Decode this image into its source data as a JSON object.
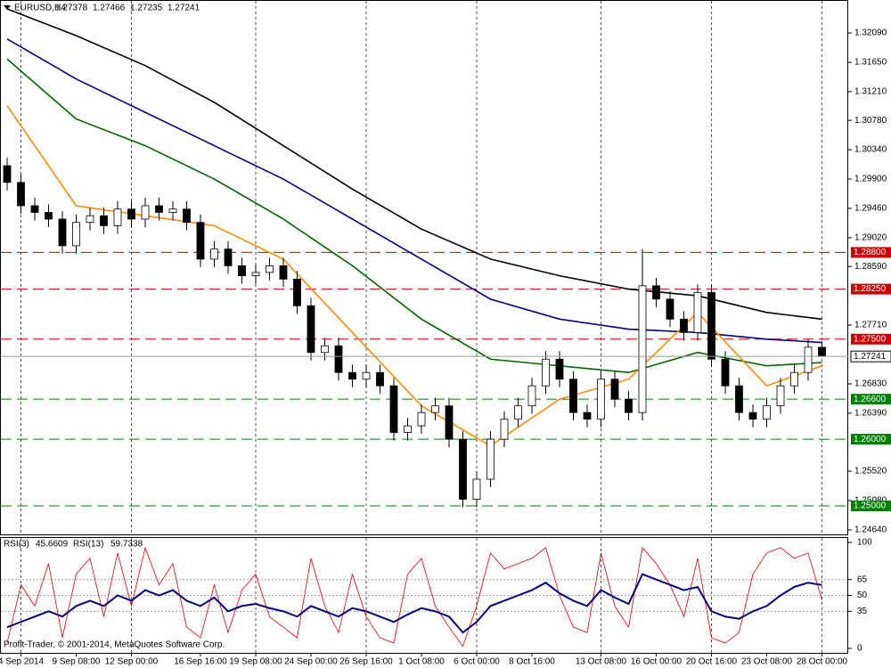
{
  "chart_data": [
    {
      "type": "candlestick",
      "symbol": "EURUSD,H4",
      "categories": [
        null,
        "4 Sep 2014",
        null,
        null,
        null,
        "9 Sep 08:00",
        null,
        null,
        null,
        "12 Sep 00:00",
        null,
        null,
        null,
        null,
        "16 Sep 16:00",
        null,
        null,
        null,
        "19 Sep 08:00",
        null,
        null,
        null,
        "24 Sep 00:00",
        null,
        null,
        null,
        "26 Sep 16:00",
        null,
        null,
        null,
        "1 Oct 08:00",
        null,
        null,
        null,
        "6 Oct 00:00",
        null,
        null,
        null,
        "8 Oct 16:00",
        null,
        null,
        null,
        null,
        "13 Oct 08:00",
        null,
        null,
        null,
        "16 Oct 00:00",
        null,
        null,
        null,
        "20 Oct 16:00",
        null,
        null,
        null,
        "23 Oct 08:00",
        null,
        null,
        null,
        "28 Oct 00:00"
      ],
      "candles": [
        [
          1.301,
          1.3022,
          1.2973,
          1.2985
        ],
        [
          1.2985,
          1.2997,
          1.2938,
          1.295
        ],
        [
          1.295,
          1.2962,
          1.2928,
          1.294
        ],
        [
          1.294,
          1.2952,
          1.2918,
          1.293
        ],
        [
          1.293,
          1.2942,
          1.2878,
          1.289
        ],
        [
          1.289,
          1.2937,
          1.2878,
          1.2925
        ],
        [
          1.2925,
          1.2947,
          1.2913,
          1.2935
        ],
        [
          1.2935,
          1.2947,
          1.2908,
          1.292
        ],
        [
          1.292,
          1.2957,
          1.2908,
          1.2945
        ],
        [
          1.2945,
          1.2957,
          1.2918,
          1.293
        ],
        [
          1.293,
          1.2962,
          1.2918,
          1.295
        ],
        [
          1.295,
          1.2962,
          1.2928,
          1.294
        ],
        [
          1.294,
          1.2957,
          1.2928,
          1.2945
        ],
        [
          1.2945,
          1.2957,
          1.2913,
          1.2925
        ],
        [
          1.2925,
          1.2937,
          1.2858,
          1.287
        ],
        [
          1.287,
          1.2897,
          1.2858,
          1.2885
        ],
        [
          1.2885,
          1.2897,
          1.2848,
          1.286
        ],
        [
          1.286,
          1.2872,
          1.2833,
          1.2845
        ],
        [
          1.2845,
          1.2862,
          1.2833,
          1.285
        ],
        [
          1.285,
          1.2872,
          1.2838,
          1.286
        ],
        [
          1.286,
          1.2872,
          1.2828,
          1.284
        ],
        [
          1.284,
          1.2852,
          1.2788,
          1.28
        ],
        [
          1.28,
          1.2812,
          1.2718,
          1.273
        ],
        [
          1.273,
          1.2752,
          1.2718,
          1.274
        ],
        [
          1.274,
          1.2752,
          1.2688,
          1.27
        ],
        [
          1.27,
          1.2712,
          1.2678,
          1.269
        ],
        [
          1.269,
          1.2712,
          1.2678,
          1.27
        ],
        [
          1.27,
          1.2712,
          1.2668,
          1.268
        ],
        [
          1.268,
          1.2692,
          1.2598,
          1.261
        ],
        [
          1.261,
          1.2632,
          1.2598,
          1.262
        ],
        [
          1.262,
          1.2652,
          1.2608,
          1.264
        ],
        [
          1.264,
          1.2662,
          1.2628,
          1.265
        ],
        [
          1.265,
          1.2662,
          1.2588,
          1.26
        ],
        [
          1.26,
          1.2612,
          1.2498,
          1.251
        ],
        [
          1.251,
          1.2552,
          1.2498,
          1.254
        ],
        [
          1.254,
          1.2612,
          1.2528,
          1.26
        ],
        [
          1.26,
          1.2642,
          1.2588,
          1.263
        ],
        [
          1.263,
          1.2662,
          1.2618,
          1.265
        ],
        [
          1.265,
          1.2692,
          1.2638,
          1.268
        ],
        [
          1.268,
          1.2732,
          1.2668,
          1.272
        ],
        [
          1.272,
          1.2732,
          1.2678,
          1.269
        ],
        [
          1.269,
          1.2702,
          1.2628,
          1.264
        ],
        [
          1.264,
          1.2652,
          1.2618,
          1.263
        ],
        [
          1.263,
          1.2702,
          1.2618,
          1.269
        ],
        [
          1.269,
          1.2702,
          1.2648,
          1.266
        ],
        [
          1.266,
          1.2672,
          1.2628,
          1.264
        ],
        [
          1.264,
          1.2885,
          1.2628,
          1.283
        ],
        [
          1.283,
          1.2842,
          1.2798,
          1.281
        ],
        [
          1.281,
          1.2822,
          1.2768,
          1.278
        ],
        [
          1.278,
          1.2792,
          1.2748,
          1.276
        ],
        [
          1.276,
          1.2832,
          1.2748,
          1.282
        ],
        [
          1.282,
          1.2832,
          1.2708,
          1.272
        ],
        [
          1.272,
          1.2732,
          1.2668,
          1.268
        ],
        [
          1.268,
          1.2692,
          1.2628,
          1.264
        ],
        [
          1.264,
          1.2652,
          1.2618,
          1.263
        ],
        [
          1.263,
          1.2662,
          1.2618,
          1.265
        ],
        [
          1.265,
          1.2692,
          1.2638,
          1.268
        ],
        [
          1.268,
          1.2712,
          1.2668,
          1.27
        ],
        [
          1.27,
          1.275,
          1.2688,
          1.2738
        ],
        [
          1.27378,
          1.27466,
          1.27235,
          1.27241
        ]
      ],
      "ylim": [
        1.24573,
        1.32584
      ],
      "yticks": [
        {
          "value": 1.3209,
          "label": "1.32090"
        },
        {
          "value": 1.3165,
          "label": "1.31650"
        },
        {
          "value": 1.3121,
          "label": "1.31210"
        },
        {
          "value": 1.3078,
          "label": "1.30780"
        },
        {
          "value": 1.3034,
          "label": "1.30340"
        },
        {
          "value": 1.299,
          "label": "1.29900"
        },
        {
          "value": 1.2946,
          "label": "1.29460"
        },
        {
          "value": 1.2902,
          "label": "1.29020"
        },
        {
          "value": 1.2859,
          "label": "1.28590"
        },
        {
          "value": 1.2771,
          "label": "1.27710"
        },
        {
          "value": 1.2683,
          "label": "1.26830"
        },
        {
          "value": 1.2639,
          "label": "1.26390"
        },
        {
          "value": 1.2552,
          "label": "1.25520"
        },
        {
          "value": 1.2508,
          "label": "1.25080"
        },
        {
          "value": 1.2464,
          "label": "1.24640"
        }
      ],
      "levels": [
        {
          "value": 1.288,
          "label": "1.28800",
          "color": "#cc0000"
        },
        {
          "value": 1.2825,
          "label": "1.28250",
          "color": "#cc0000"
        },
        {
          "value": 1.275,
          "label": "1.27500",
          "color": "#cc0000"
        },
        {
          "value": 1.266,
          "label": "1.26600",
          "color": "#008000"
        },
        {
          "value": 1.26,
          "label": "1.26000",
          "color": "#008000"
        },
        {
          "value": 1.25,
          "label": "1.25000",
          "color": "#008000"
        }
      ],
      "ma_x": [
        0,
        5,
        10,
        15,
        20,
        25,
        30,
        35,
        40,
        45,
        50,
        55,
        59
      ],
      "ma": [
        {
          "color": "#000000",
          "values": [
            1.3245,
            1.3205,
            1.316,
            1.3105,
            1.304,
            1.2975,
            1.2915,
            1.287,
            1.2845,
            1.2825,
            1.2815,
            1.279,
            1.278
          ]
        },
        {
          "color": "#000080",
          "values": [
            1.32,
            1.314,
            1.309,
            1.304,
            1.299,
            1.293,
            1.287,
            1.281,
            1.278,
            1.2765,
            1.276,
            1.275,
            1.2745
          ]
        },
        {
          "color": "#006400",
          "values": [
            1.317,
            1.308,
            1.304,
            1.299,
            1.293,
            1.286,
            1.278,
            1.272,
            1.271,
            1.27,
            1.273,
            1.271,
            1.2715
          ]
        },
        {
          "color": "#ff8c00",
          "values": [
            1.31,
            1.295,
            1.2935,
            1.292,
            1.287,
            1.276,
            1.265,
            1.259,
            1.266,
            1.269,
            1.279,
            1.268,
            1.271
          ]
        }
      ]
    },
    {
      "type": "line",
      "ylim": [
        0,
        100
      ],
      "yticks": [
        0,
        35,
        50,
        65,
        100
      ],
      "series": [
        {
          "name": "RSI(3)",
          "color": "#dd0000",
          "values": [
            5,
            60,
            40,
            80,
            10,
            70,
            85,
            30,
            90,
            40,
            95,
            60,
            80,
            20,
            10,
            60,
            15,
            55,
            70,
            30,
            20,
            10,
            85,
            40,
            15,
            70,
            30,
            10,
            5,
            70,
            85,
            40,
            20,
            2,
            40,
            90,
            75,
            80,
            85,
            95,
            50,
            20,
            15,
            90,
            40,
            20,
            95,
            80,
            60,
            30,
            85,
            10,
            5,
            15,
            70,
            90,
            95,
            85,
            90,
            45.6609
          ]
        },
        {
          "name": "RSI(13)",
          "color": "#000080",
          "values": [
            20,
            25,
            30,
            35,
            30,
            40,
            45,
            40,
            50,
            45,
            55,
            50,
            55,
            45,
            40,
            48,
            35,
            40,
            42,
            38,
            35,
            30,
            40,
            35,
            30,
            38,
            35,
            30,
            25,
            32,
            38,
            35,
            30,
            15,
            25,
            40,
            45,
            50,
            55,
            62,
            52,
            45,
            40,
            55,
            48,
            42,
            70,
            65,
            60,
            55,
            58,
            35,
            30,
            28,
            35,
            40,
            50,
            58,
            62,
            59.7338
          ]
        }
      ],
      "copyright": "Profit-Trader, © 2001-2014, MetaQuotes Software Corp."
    }
  ]
}
